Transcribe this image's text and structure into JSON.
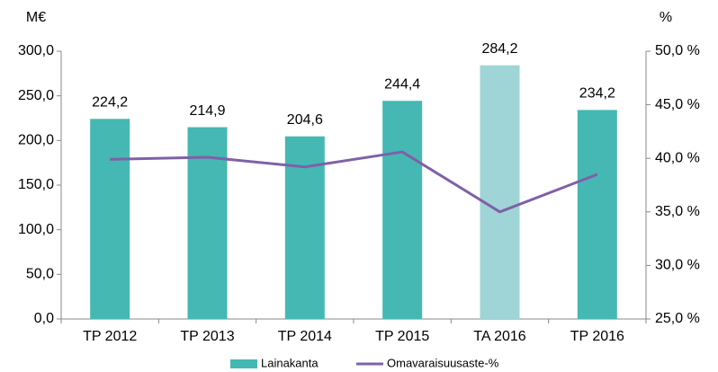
{
  "chart_data": {
    "type": "bar",
    "y_axis_label": "M€",
    "y2_axis_label": "%",
    "categories": [
      "TP 2012",
      "TP 2013",
      "TP 2014",
      "TP 2015",
      "TA 2016",
      "TP 2016"
    ],
    "series": [
      {
        "name": "Lainakanta",
        "type": "bar",
        "color": "#45b8b3",
        "colors": [
          "#45b8b3",
          "#45b8b3",
          "#45b8b3",
          "#45b8b3",
          "#9fd5d6",
          "#45b8b3"
        ],
        "values": [
          224.2,
          214.9,
          204.6,
          244.4,
          284.2,
          234.2
        ],
        "value_labels": [
          "224,2",
          "214,9",
          "204,6",
          "244,4",
          "284,2",
          "234,2"
        ]
      },
      {
        "name": "Omavaraisuusaste-%",
        "type": "line",
        "axis": "y2",
        "color": "#8060a8",
        "values": [
          39.9,
          40.1,
          39.2,
          40.6,
          35.0,
          38.5
        ]
      }
    ],
    "ylim": [
      0,
      300
    ],
    "yticks": [
      {
        "value": 0,
        "label": "0,0"
      },
      {
        "value": 50,
        "label": "50,0"
      },
      {
        "value": 100,
        "label": "100,0"
      },
      {
        "value": 150,
        "label": "150,0"
      },
      {
        "value": 200,
        "label": "200,0"
      },
      {
        "value": 250,
        "label": "250,0"
      },
      {
        "value": 300,
        "label": "300,0"
      }
    ],
    "y2lim": [
      25,
      50
    ],
    "y2ticks": [
      {
        "value": 25,
        "label": "25,0 %"
      },
      {
        "value": 30,
        "label": "30,0 %"
      },
      {
        "value": 35,
        "label": "35,0 %"
      },
      {
        "value": 40,
        "label": "40,0 %"
      },
      {
        "value": 45,
        "label": "45,0 %"
      },
      {
        "value": 50,
        "label": "50,0 %"
      }
    ],
    "grid": false,
    "legend": "bottom"
  }
}
